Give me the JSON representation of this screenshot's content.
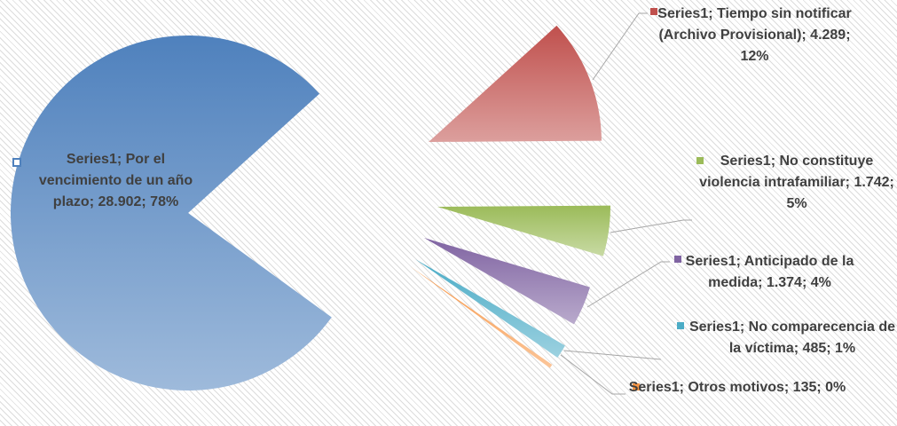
{
  "chart_data": {
    "type": "pie",
    "labels": [
      "Series1; Por el vencimiento de un año plazo; 28.902; 78%",
      "Series1; Tiempo sin notificar (Archivo Provisional); 4.289; 12%",
      "Series1; No constituye violencia intrafamiliar; 1.742; 5%",
      "Series1; Anticipado de la medida; 1.374; 4%",
      "Series1; No comparecencia de la víctima; 485; 1%",
      "Series1; Otros motivos; 135; 0%"
    ],
    "values": [
      28902,
      4289,
      1742,
      1374,
      485,
      135
    ],
    "colors": [
      "#4f81bd",
      "#c0504d",
      "#9bbb59",
      "#8064a2",
      "#4bacc6",
      "#f79646"
    ]
  }
}
